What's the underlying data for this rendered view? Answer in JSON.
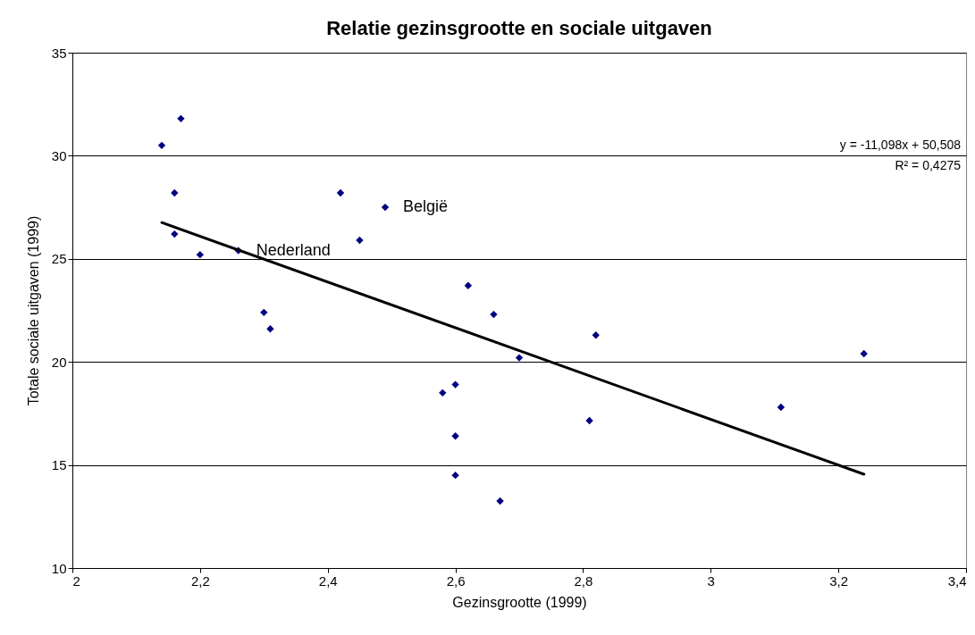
{
  "chart_data": {
    "type": "scatter",
    "title": "Relatie gezinsgrootte en sociale uitgaven",
    "xlabel": "Gezinsgrootte (1999)",
    "ylabel": "Totale sociale uitgaven (1999)",
    "xlim": [
      2,
      3.4
    ],
    "xticks": [
      {
        "value": 2,
        "label": "2"
      },
      {
        "value": 2.2,
        "label": "2,2"
      },
      {
        "value": 2.4,
        "label": "2,4"
      },
      {
        "value": 2.6,
        "label": "2,6"
      },
      {
        "value": 2.8,
        "label": "2,8"
      },
      {
        "value": 3,
        "label": "3"
      },
      {
        "value": 3.2,
        "label": "3,2"
      },
      {
        "value": 3.4,
        "label": "3,4"
      }
    ],
    "ylim": [
      10,
      35
    ],
    "yticks": [
      10,
      15,
      20,
      25,
      30,
      35
    ],
    "grid": "y",
    "legend": false,
    "marker": "diamond",
    "series": [
      {
        "type": "scatter",
        "color": "#000080",
        "x": [
          2.14,
          2.17,
          2.16,
          2.16,
          2.2,
          2.26,
          2.3,
          2.31,
          2.42,
          2.45,
          2.49,
          2.58,
          2.6,
          2.6,
          2.6,
          2.62,
          2.66,
          2.67,
          2.7,
          2.81,
          2.82,
          3.11,
          3.24
        ],
        "values": [
          30.5,
          31.8,
          28.2,
          26.2,
          25.2,
          25.4,
          22.4,
          21.6,
          28.2,
          25.9,
          27.5,
          18.5,
          18.9,
          16.4,
          14.5,
          23.7,
          22.3,
          13.25,
          20.2,
          17.15,
          21.3,
          17.8,
          20.4
        ]
      },
      {
        "type": "line",
        "color": "#000000",
        "marker": "none",
        "line_style": "solid",
        "x": [
          2.14,
          3.24
        ],
        "values": [
          26.76,
          14.55
        ]
      }
    ],
    "annotations": [
      {
        "text": "Nederland",
        "x": 2.26,
        "y": 25.4
      },
      {
        "text": "België",
        "x": 2.49,
        "y": 27.5
      },
      "y = -11,098x + 50,508",
      "R² = 0,4275"
    ]
  }
}
